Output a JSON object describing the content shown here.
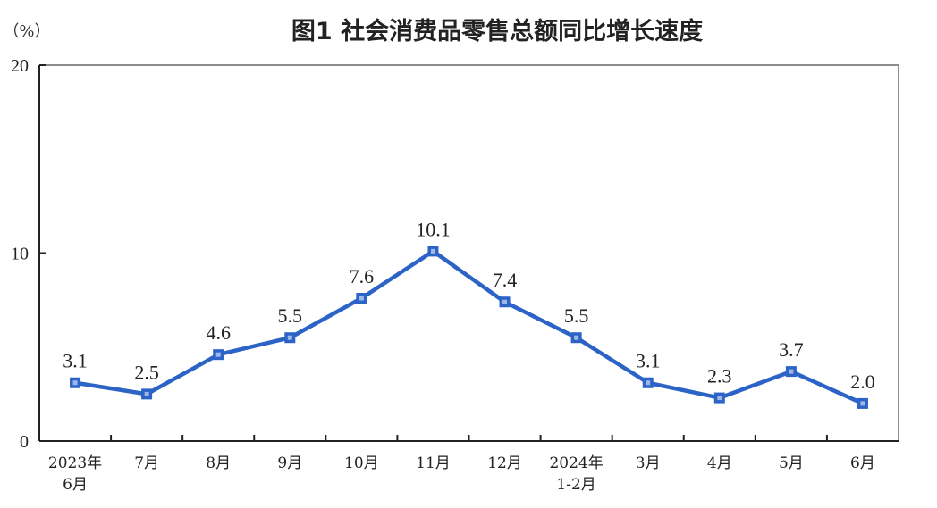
{
  "chart_data": {
    "type": "line",
    "title": "图1  社会消费品零售总额同比增长速度",
    "ylabel": "（%）",
    "xlabel": "",
    "ylim": [
      0,
      20
    ],
    "yticks": [
      "0",
      "10",
      "20"
    ],
    "grid": false,
    "legend": "none",
    "categories": [
      [
        "2023年",
        "6月"
      ],
      [
        "7月"
      ],
      [
        "8月"
      ],
      [
        "9月"
      ],
      [
        "10月"
      ],
      [
        "11月"
      ],
      [
        "12月"
      ],
      [
        "2024年",
        "1-2月"
      ],
      [
        "3月"
      ],
      [
        "4月"
      ],
      [
        "5月"
      ],
      [
        "6月"
      ]
    ],
    "series": [
      {
        "color": "#2b63c6",
        "values": [
          3.1,
          2.5,
          4.6,
          5.5,
          7.6,
          10.1,
          7.4,
          5.5,
          3.1,
          2.3,
          3.7,
          2.0
        ],
        "labels": [
          "3.1",
          "2.5",
          "4.6",
          "5.5",
          "7.6",
          "10.1",
          "7.4",
          "5.5",
          "3.1",
          "2.3",
          "3.7",
          "2.0"
        ]
      }
    ],
    "colors": {
      "axis": "#222222",
      "frame": "#8c8c8c",
      "line": "#2b63c6",
      "marker": "#2b63c6",
      "marker_inner": "#9fb8e6"
    }
  }
}
